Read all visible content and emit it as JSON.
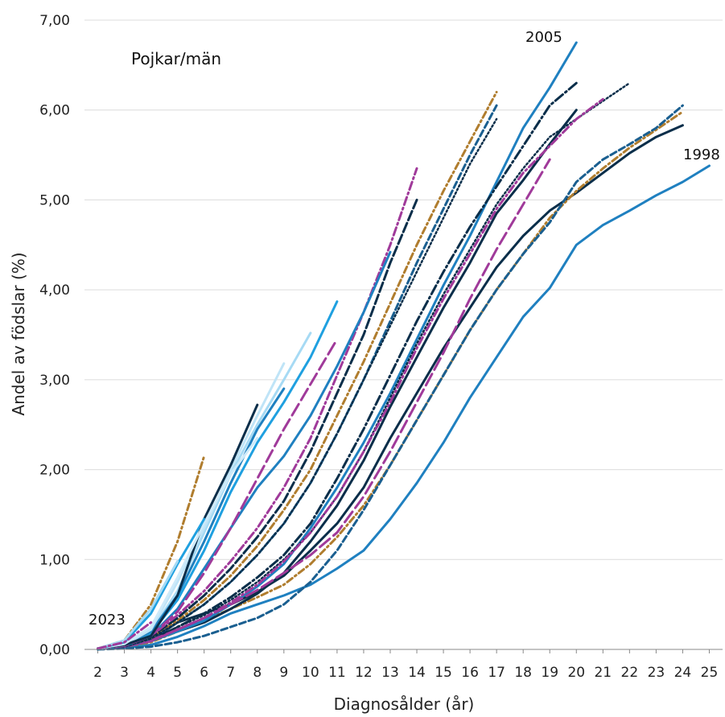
{
  "chart_data": {
    "type": "line",
    "title": "",
    "xlabel": "Diagnosålder (år)",
    "ylabel": "Andel av födslar (%)",
    "xlim": [
      1.5,
      25.5
    ],
    "ylim": [
      0,
      7
    ],
    "grid": "horizontal",
    "x_ticks": [
      "2",
      "3",
      "4",
      "5",
      "6",
      "7",
      "8",
      "9",
      "10",
      "11",
      "12",
      "13",
      "14",
      "15",
      "16",
      "17",
      "18",
      "19",
      "20",
      "21",
      "22",
      "23",
      "24",
      "25"
    ],
    "y_ticks": [
      "0,00",
      "1,00",
      "2,00",
      "3,00",
      "4,00",
      "5,00",
      "6,00",
      "7,00"
    ],
    "annotations": {
      "group_label": "Pojkar/män",
      "label_2005": "2005",
      "label_1998": "1998",
      "label_2023": "2023"
    },
    "series": [
      {
        "color": "#1f80c0",
        "dash": "solid",
        "width": 3,
        "x": [
          2,
          3,
          4,
          5,
          6,
          7,
          8,
          9,
          10,
          11,
          12,
          13,
          14,
          15,
          16,
          17,
          18,
          19,
          20,
          21,
          22,
          23,
          24,
          25
        ],
        "y": [
          0.01,
          0.02,
          0.05,
          0.14,
          0.26,
          0.4,
          0.5,
          0.6,
          0.72,
          0.9,
          1.1,
          1.45,
          1.85,
          2.3,
          2.8,
          3.25,
          3.7,
          4.02,
          4.5,
          4.72,
          4.88,
          5.05,
          5.2,
          5.38
        ]
      },
      {
        "color": "#0a2e4a",
        "dash": "solid",
        "width": 3,
        "x": [
          2,
          3,
          4,
          5,
          6,
          7,
          8,
          9,
          10,
          11,
          12,
          13,
          14,
          15,
          16,
          17,
          18,
          19,
          20,
          21,
          22,
          23,
          24
        ],
        "y": [
          0.01,
          0.03,
          0.1,
          0.3,
          0.4,
          0.5,
          0.64,
          0.82,
          1.1,
          1.4,
          1.8,
          2.35,
          2.85,
          3.35,
          3.8,
          4.25,
          4.6,
          4.88,
          5.08,
          5.3,
          5.52,
          5.7,
          5.83
        ]
      },
      {
        "color": "#b07d2e",
        "dash": "8 4 2 4",
        "width": 3,
        "x": [
          2,
          3,
          4,
          5,
          6,
          7,
          8,
          9,
          10,
          11,
          12,
          13,
          14,
          15,
          16,
          17,
          18,
          19,
          20,
          21,
          22,
          23,
          24
        ],
        "y": [
          0.01,
          0.03,
          0.08,
          0.2,
          0.32,
          0.45,
          0.58,
          0.72,
          0.95,
          1.25,
          1.6,
          2.05,
          2.55,
          3.05,
          3.55,
          4.0,
          4.4,
          4.8,
          5.1,
          5.35,
          5.58,
          5.78,
          5.98
        ]
      },
      {
        "color": "#1a5f90",
        "dash": "8 4",
        "width": 3,
        "x": [
          2,
          3,
          4,
          5,
          6,
          7,
          8,
          9,
          10,
          11,
          12,
          13,
          14,
          15,
          16,
          17,
          18,
          19,
          20,
          21,
          22,
          23,
          24
        ],
        "y": [
          0.0,
          0.01,
          0.03,
          0.08,
          0.15,
          0.25,
          0.35,
          0.5,
          0.75,
          1.1,
          1.55,
          2.05,
          2.55,
          3.05,
          3.55,
          4.0,
          4.4,
          4.75,
          5.2,
          5.45,
          5.62,
          5.8,
          6.05
        ]
      },
      {
        "color": "#0a2e4a",
        "dash": "solid",
        "width": 3,
        "x": [
          2,
          3,
          4,
          5,
          6,
          7,
          8,
          9,
          10,
          11,
          12,
          13,
          14,
          15,
          16,
          17,
          18,
          19,
          20
        ],
        "y": [
          0.01,
          0.03,
          0.1,
          0.2,
          0.3,
          0.45,
          0.62,
          0.85,
          1.2,
          1.6,
          2.1,
          2.7,
          3.25,
          3.8,
          4.3,
          4.85,
          5.22,
          5.62,
          6.0
        ]
      },
      {
        "color": "#1f80c0",
        "dash": "solid",
        "width": 3,
        "x": [
          2,
          3,
          4,
          5,
          6,
          7,
          8,
          9,
          10,
          11,
          12,
          13,
          14,
          15,
          16,
          17,
          18,
          19,
          20
        ],
        "y": [
          0.01,
          0.03,
          0.09,
          0.2,
          0.32,
          0.5,
          0.7,
          0.95,
          1.35,
          1.8,
          2.3,
          2.85,
          3.45,
          4.05,
          4.6,
          5.2,
          5.8,
          6.25,
          6.75
        ]
      },
      {
        "color": "#0a2e4a",
        "dash": "12 4 2 4",
        "width": 3,
        "x": [
          2,
          3,
          4,
          5,
          6,
          7,
          8,
          9,
          10,
          11,
          12,
          13,
          14,
          15,
          16,
          17,
          18,
          19,
          20
        ],
        "y": [
          0.01,
          0.03,
          0.1,
          0.25,
          0.4,
          0.58,
          0.8,
          1.05,
          1.4,
          1.9,
          2.45,
          3.05,
          3.65,
          4.2,
          4.7,
          5.15,
          5.6,
          6.05,
          6.3
        ]
      },
      {
        "color": "#0a2e4a",
        "dash": "2 3",
        "width": 2.5,
        "x": [
          2,
          3,
          4,
          5,
          6,
          7,
          8,
          9,
          10,
          11,
          12,
          13,
          14,
          15,
          16,
          17,
          18,
          19,
          20,
          21,
          22
        ],
        "y": [
          0.01,
          0.03,
          0.1,
          0.25,
          0.38,
          0.55,
          0.75,
          1.0,
          1.3,
          1.7,
          2.2,
          2.8,
          3.4,
          3.95,
          4.45,
          4.95,
          5.35,
          5.7,
          5.9,
          6.1,
          6.3
        ]
      },
      {
        "color": "#a03a9a",
        "dash": "10 4 2 4",
        "width": 3,
        "x": [
          2,
          3,
          4,
          5,
          6,
          7,
          8,
          9,
          10,
          11,
          12,
          13,
          14,
          15,
          16,
          17,
          18,
          19,
          20,
          21
        ],
        "y": [
          0.01,
          0.03,
          0.09,
          0.22,
          0.35,
          0.52,
          0.72,
          0.98,
          1.3,
          1.7,
          2.2,
          2.75,
          3.35,
          3.9,
          4.4,
          4.9,
          5.3,
          5.6,
          5.9,
          6.12
        ]
      },
      {
        "color": "#a03a9a",
        "dash": "16 6",
        "width": 3,
        "x": [
          2,
          3,
          4,
          5,
          6,
          7,
          8,
          9,
          10,
          11,
          12,
          13,
          14,
          15,
          16,
          17,
          18,
          19
        ],
        "y": [
          0.01,
          0.03,
          0.1,
          0.22,
          0.35,
          0.5,
          0.66,
          0.85,
          1.05,
          1.3,
          1.7,
          2.2,
          2.75,
          3.3,
          3.9,
          4.45,
          4.95,
          5.45
        ]
      },
      {
        "color": "#1a5f90",
        "dash": "8 4",
        "width": 3,
        "x": [
          2,
          3,
          4,
          5,
          6,
          7,
          8,
          9,
          10,
          11,
          12,
          13,
          14,
          15,
          16,
          17
        ],
        "y": [
          0.01,
          0.03,
          0.12,
          0.3,
          0.5,
          0.75,
          1.05,
          1.4,
          1.85,
          2.4,
          3.0,
          3.65,
          4.3,
          4.9,
          5.5,
          6.05
        ]
      },
      {
        "color": "#b07d2e",
        "dash": "8 4 2 4",
        "width": 3,
        "x": [
          2,
          3,
          4,
          5,
          6,
          7,
          8,
          9,
          10,
          11,
          12,
          13,
          14,
          15,
          16,
          17
        ],
        "y": [
          0.01,
          0.04,
          0.13,
          0.32,
          0.55,
          0.82,
          1.15,
          1.55,
          2.0,
          2.6,
          3.2,
          3.85,
          4.5,
          5.1,
          5.65,
          6.2
        ]
      },
      {
        "color": "#0a2e4a",
        "dash": "2 3",
        "width": 2.5,
        "x": [
          2,
          3,
          4,
          5,
          6,
          7,
          8,
          9,
          10,
          11,
          12,
          13,
          14,
          15,
          16,
          17
        ],
        "y": [
          0.01,
          0.03,
          0.12,
          0.3,
          0.5,
          0.75,
          1.05,
          1.4,
          1.85,
          2.4,
          3.0,
          3.6,
          4.2,
          4.8,
          5.4,
          5.9
        ]
      },
      {
        "color": "#0a2e4a",
        "dash": "12 4",
        "width": 3,
        "x": [
          2,
          3,
          4,
          5,
          6,
          7,
          8,
          9,
          10,
          11,
          12,
          13,
          14
        ],
        "y": [
          0.01,
          0.04,
          0.14,
          0.35,
          0.6,
          0.9,
          1.25,
          1.65,
          2.2,
          2.85,
          3.5,
          4.3,
          5.0
        ]
      },
      {
        "color": "#a03a9a",
        "dash": "10 4 2 4",
        "width": 3,
        "x": [
          2,
          3,
          4,
          5,
          6,
          7,
          8,
          9,
          10,
          11,
          12,
          13,
          14
        ],
        "y": [
          0.01,
          0.04,
          0.15,
          0.38,
          0.65,
          0.98,
          1.35,
          1.8,
          2.35,
          3.05,
          3.75,
          4.5,
          5.35
        ]
      },
      {
        "color": "#1f80c0",
        "dash": "solid",
        "width": 3,
        "x": [
          2,
          3,
          4,
          5,
          6,
          7,
          8,
          9,
          10,
          11,
          12,
          13
        ],
        "y": [
          0.01,
          0.04,
          0.15,
          0.45,
          0.9,
          1.35,
          1.8,
          2.15,
          2.6,
          3.15,
          3.75,
          4.42
        ]
      },
      {
        "color": "#a03a9a",
        "dash": "16 6",
        "width": 3,
        "x": [
          2,
          3,
          4,
          5,
          6,
          7,
          8,
          9,
          10,
          11
        ],
        "y": [
          0.01,
          0.04,
          0.15,
          0.42,
          0.85,
          1.35,
          1.9,
          2.45,
          2.95,
          3.45
        ]
      },
      {
        "color": "#1fa0e0",
        "dash": "solid",
        "width": 3,
        "x": [
          2,
          3,
          4,
          5,
          6,
          7,
          8,
          9,
          10,
          11
        ],
        "y": [
          0.01,
          0.05,
          0.18,
          0.55,
          1.1,
          1.75,
          2.3,
          2.75,
          3.25,
          3.87
        ]
      },
      {
        "color": "#a6daf4",
        "dash": "solid",
        "width": 3,
        "x": [
          2,
          3,
          4,
          5,
          6,
          7,
          8,
          9,
          10
        ],
        "y": [
          0.01,
          0.05,
          0.2,
          0.65,
          1.3,
          1.95,
          2.5,
          3.0,
          3.52
        ]
      },
      {
        "color": "#1f80c0",
        "dash": "solid",
        "width": 3,
        "x": [
          2,
          3,
          4,
          5,
          6,
          7,
          8,
          9
        ],
        "y": [
          0.01,
          0.05,
          0.2,
          0.6,
          1.2,
          1.85,
          2.45,
          2.9
        ]
      },
      {
        "color": "#bfe4f7",
        "dash": "solid",
        "width": 3,
        "x": [
          2,
          3,
          4,
          5,
          6,
          7,
          8,
          9
        ],
        "y": [
          0.01,
          0.05,
          0.22,
          0.75,
          1.35,
          2.0,
          2.6,
          3.18
        ]
      },
      {
        "color": "#0a2e4a",
        "dash": "solid",
        "width": 3,
        "x": [
          2,
          3,
          4,
          5,
          6,
          7,
          8
        ],
        "y": [
          0.01,
          0.05,
          0.15,
          0.6,
          1.45,
          2.05,
          2.72
        ]
      },
      {
        "color": "#cdeafa",
        "dash": "solid",
        "width": 3,
        "x": [
          2,
          3,
          4,
          5,
          6,
          7,
          8
        ],
        "y": [
          0.01,
          0.06,
          0.25,
          0.8,
          1.4,
          1.95,
          2.35
        ]
      },
      {
        "color": "#1fa0e0",
        "dash": "solid",
        "width": 3,
        "x": [
          2,
          3,
          4,
          5,
          6
        ],
        "y": [
          0.01,
          0.08,
          0.4,
          0.95,
          1.45
        ]
      },
      {
        "color": "#b07d2e",
        "dash": "8 4 2 4",
        "width": 3,
        "x": [
          2,
          3,
          4,
          5,
          6
        ],
        "y": [
          0.01,
          0.1,
          0.5,
          1.2,
          2.15
        ]
      },
      {
        "color": "#a6daf4",
        "dash": "solid",
        "width": 3,
        "x": [
          2,
          3,
          4,
          5
        ],
        "y": [
          0.01,
          0.1,
          0.45,
          0.98
        ]
      },
      {
        "color": "#a03a9a",
        "dash": "10 4 2 4",
        "width": 3,
        "x": [
          2,
          3,
          4
        ],
        "y": [
          0.01,
          0.08,
          0.3
        ]
      }
    ]
  }
}
